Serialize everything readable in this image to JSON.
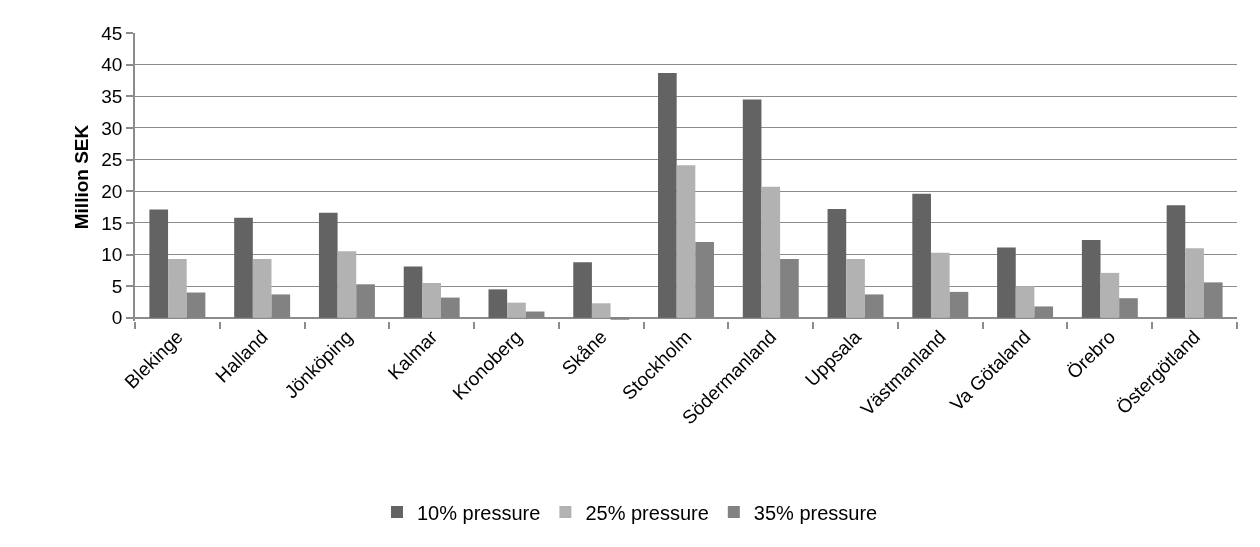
{
  "chart_data": {
    "type": "bar",
    "ylabel": "Million SEK",
    "categories": [
      "Blekinge",
      "Halland",
      "Jönköping",
      "Kalmar",
      "Kronoberg",
      "Skåne",
      "Stockholm",
      "Södermanland",
      "Uppsala",
      "Västmanland",
      "Va Götaland",
      "Örebro",
      "Östergötland"
    ],
    "series": [
      {
        "name": "10% pressure",
        "color": "#636363",
        "values": [
          17.1,
          15.8,
          16.6,
          8.1,
          4.5,
          8.8,
          38.7,
          34.5,
          17.2,
          19.6,
          11.1,
          12.3,
          17.8
        ]
      },
      {
        "name": "25% pressure",
        "color": "#b2b2b2",
        "values": [
          9.3,
          9.3,
          10.5,
          5.5,
          2.4,
          2.3,
          24.1,
          20.7,
          9.3,
          10.3,
          5.0,
          7.1,
          11.0
        ]
      },
      {
        "name": "35% pressure",
        "color": "#828282",
        "values": [
          4.0,
          3.7,
          5.3,
          3.2,
          1.0,
          -0.3,
          12.0,
          9.3,
          3.7,
          4.1,
          1.8,
          3.1,
          5.6
        ]
      }
    ],
    "ylim": [
      -0.5,
      45
    ],
    "yticks": [
      0,
      5,
      10,
      15,
      20,
      25,
      30,
      35,
      40,
      45
    ],
    "grid": "y",
    "legend": "bottom"
  }
}
